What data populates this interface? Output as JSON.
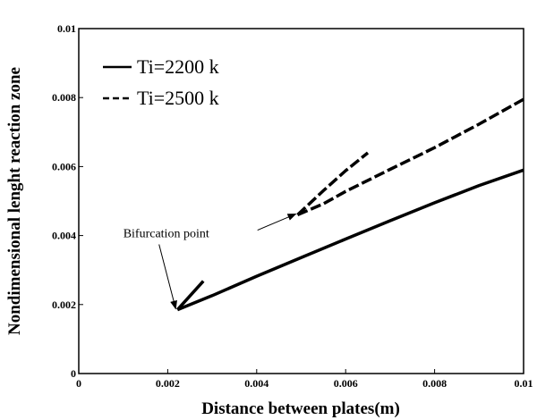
{
  "chart_data": {
    "type": "line",
    "title": "",
    "xlabel": "Distance between plates(m)",
    "ylabel": "Nondimensional lenght reaction zone",
    "xlim": [
      0,
      0.01
    ],
    "ylim": [
      0,
      0.01
    ],
    "x_ticks": [
      {
        "value": 0,
        "label": "0"
      },
      {
        "value": 0.002,
        "label": "0.002"
      },
      {
        "value": 0.004,
        "label": "0.004"
      },
      {
        "value": 0.006,
        "label": "0.006"
      },
      {
        "value": 0.008,
        "label": "0.008"
      },
      {
        "value": 0.01,
        "label": "0.01"
      }
    ],
    "y_ticks": [
      {
        "value": 0,
        "label": "0"
      },
      {
        "value": 0.002,
        "label": "0.002"
      },
      {
        "value": 0.004,
        "label": "0.004"
      },
      {
        "value": 0.006,
        "label": "0.006"
      },
      {
        "value": 0.008,
        "label": "0.008"
      },
      {
        "value": 0.01,
        "label": "0.01"
      }
    ],
    "grid": false,
    "legend_position": "top-left",
    "series": [
      {
        "name": "Ti=2200 k",
        "style": "solid",
        "color": "#000000",
        "branches": [
          [
            [
              0.00222,
              0.00185
            ],
            [
              0.0026,
              0.00205
            ],
            [
              0.003,
              0.00226
            ],
            [
              0.004,
              0.00282
            ],
            [
              0.005,
              0.00336
            ],
            [
              0.006,
              0.0039
            ],
            [
              0.007,
              0.00443
            ],
            [
              0.008,
              0.00495
            ],
            [
              0.009,
              0.00545
            ],
            [
              0.01,
              0.0059
            ]
          ],
          [
            [
              0.00222,
              0.00185
            ],
            [
              0.0025,
              0.00225
            ],
            [
              0.0028,
              0.00268
            ]
          ]
        ]
      },
      {
        "name": "Ti=2500 k",
        "style": "dashed",
        "color": "#000000",
        "branches": [
          [
            [
              0.00492,
              0.0046
            ],
            [
              0.0055,
              0.00492
            ],
            [
              0.006,
              0.00528
            ],
            [
              0.007,
              0.00592
            ],
            [
              0.008,
              0.00655
            ],
            [
              0.009,
              0.00723
            ],
            [
              0.01,
              0.00795
            ]
          ],
          [
            [
              0.00492,
              0.0046
            ],
            [
              0.0055,
              0.0053
            ],
            [
              0.006,
              0.00588
            ],
            [
              0.0065,
              0.0064
            ]
          ]
        ]
      }
    ],
    "annotations": [
      {
        "text": "Bifurcation point",
        "x": 0.001,
        "y": 0.00395,
        "arrows_to": [
          [
            0.00222,
            0.00185
          ],
          [
            0.00492,
            0.0046
          ]
        ]
      }
    ]
  }
}
